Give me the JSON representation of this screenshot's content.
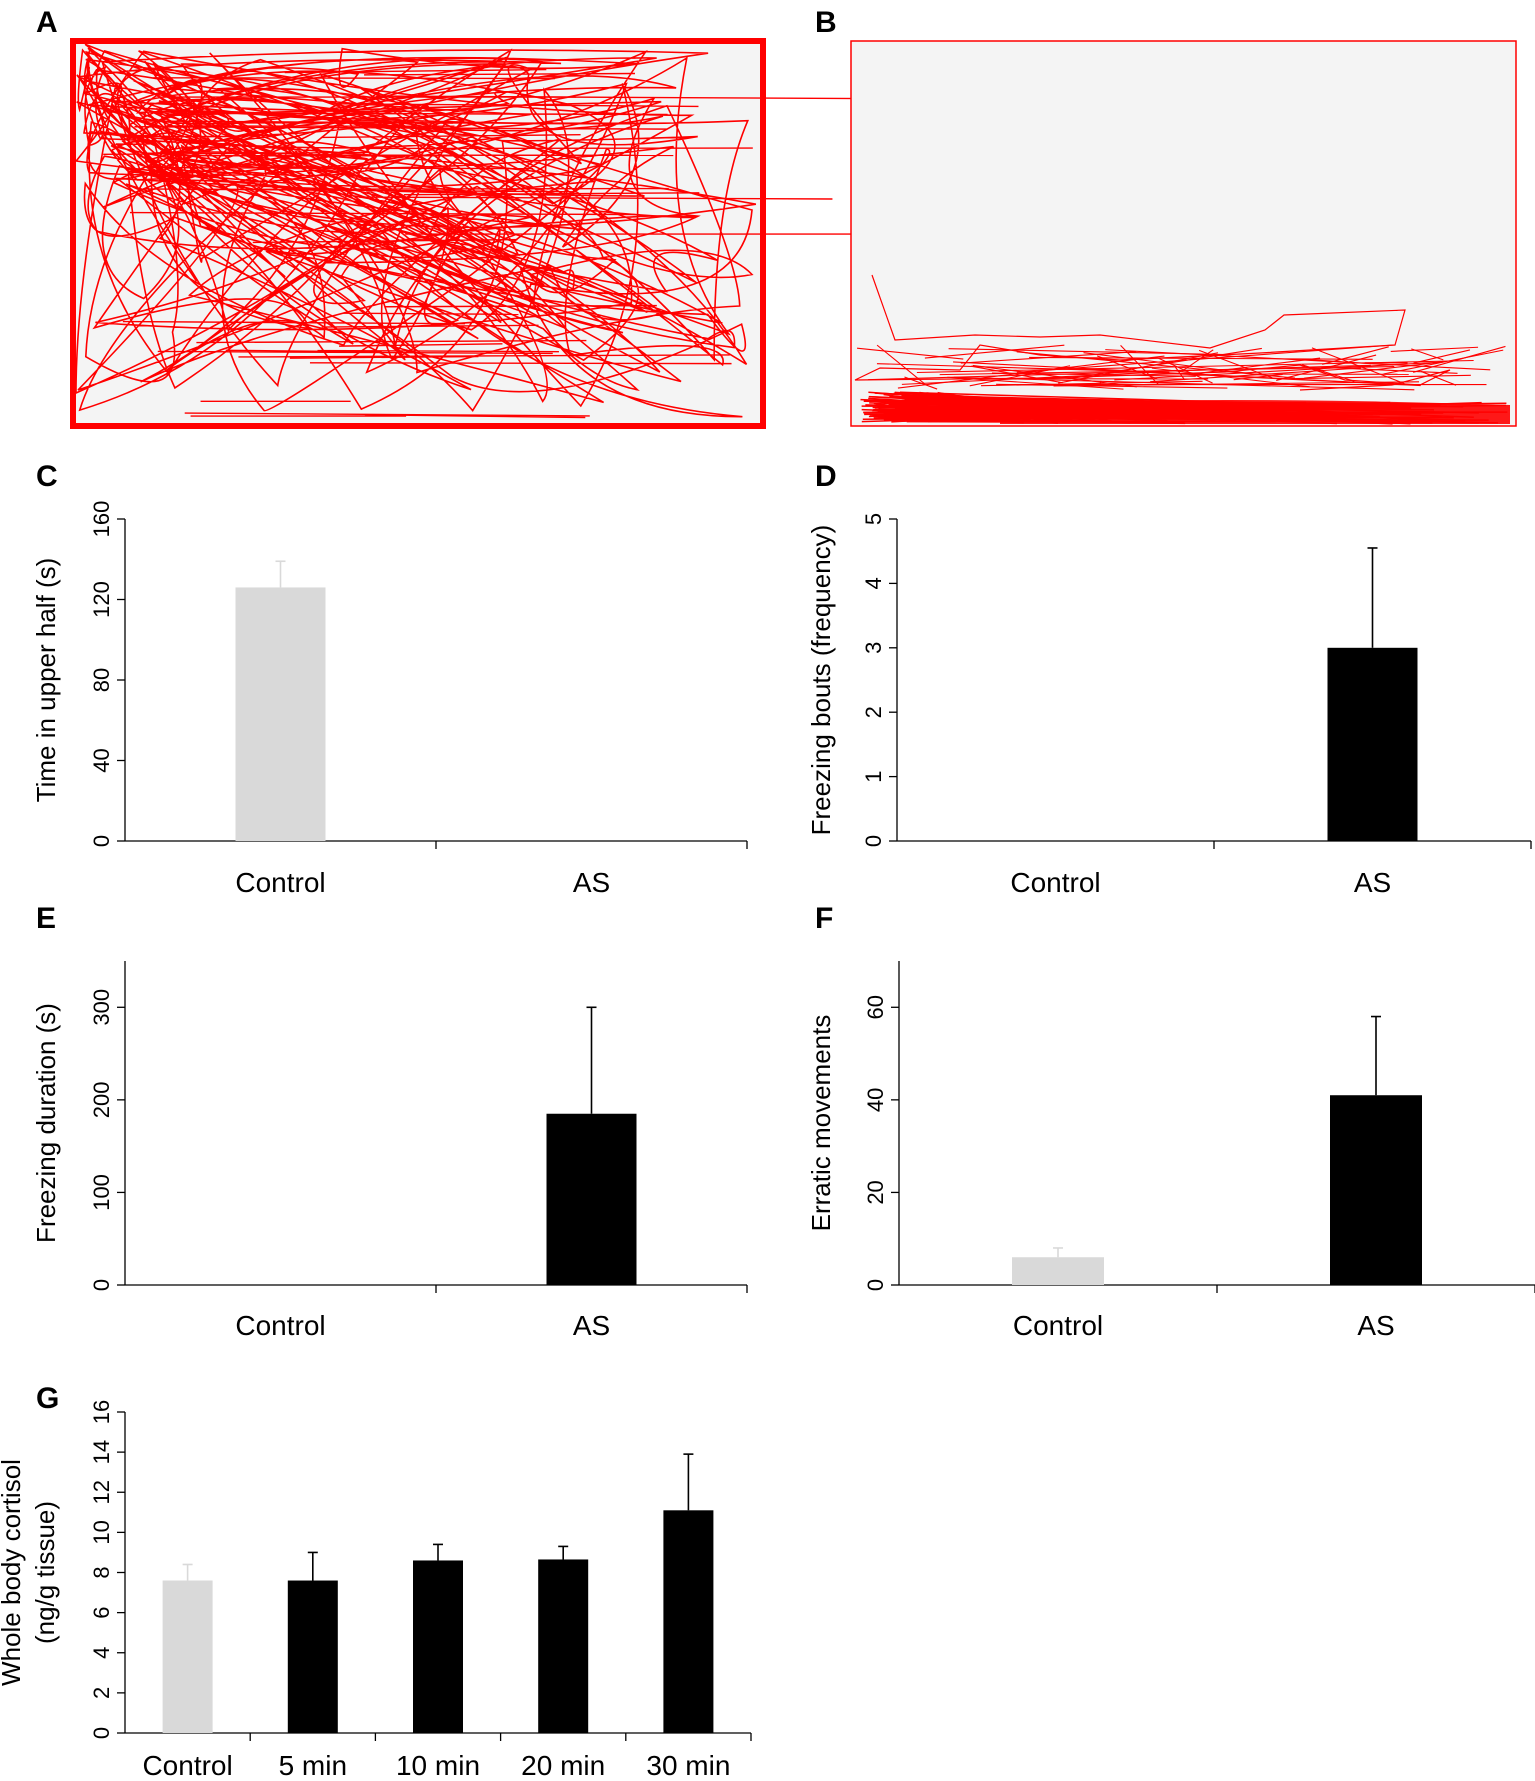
{
  "panels": {
    "A": {
      "letter": "A"
    },
    "B": {
      "letter": "B"
    }
  },
  "colors": {
    "track": "#ff0000",
    "arena_bg": "#f4f4f4",
    "control_bar": "#d9d9d9",
    "treated_bar": "#000000",
    "control_err": "#d9d9d9",
    "treated_err": "#000000"
  },
  "chart_data": [
    {
      "id": "C",
      "letter": "C",
      "type": "bar",
      "categories": [
        "Control",
        "AS"
      ],
      "values": [
        126,
        0
      ],
      "errors": [
        13,
        0
      ],
      "ylim": [
        0,
        160
      ],
      "yticks": [
        0,
        40,
        80,
        120,
        160
      ],
      "ylabel": "Time in upper half (s)",
      "bar_colors": [
        "control",
        "treated"
      ]
    },
    {
      "id": "D",
      "letter": "D",
      "type": "bar",
      "categories": [
        "Control",
        "AS"
      ],
      "values": [
        0,
        3
      ],
      "errors": [
        0,
        1.55
      ],
      "ylim": [
        0,
        5
      ],
      "yticks": [
        0,
        1,
        2,
        3,
        4,
        5
      ],
      "ylabel": "Freezing bouts (frequency)",
      "bar_colors": [
        "control",
        "treated"
      ]
    },
    {
      "id": "E",
      "letter": "E",
      "type": "bar",
      "categories": [
        "Control",
        "AS"
      ],
      "values": [
        0,
        185
      ],
      "errors": [
        0,
        115
      ],
      "ylim": [
        0,
        350
      ],
      "yticks": [
        0,
        100,
        200,
        300
      ],
      "ylabel": "Freezing duration (s)",
      "bar_colors": [
        "control",
        "treated"
      ]
    },
    {
      "id": "F",
      "letter": "F",
      "type": "bar",
      "categories": [
        "Control",
        "AS"
      ],
      "values": [
        6,
        41
      ],
      "errors": [
        2,
        17
      ],
      "ylim": [
        0,
        70
      ],
      "yticks": [
        0,
        20,
        40,
        60
      ],
      "ylabel": "Erratic movements",
      "bar_colors": [
        "control",
        "treated"
      ]
    },
    {
      "id": "G",
      "letter": "G",
      "type": "bar",
      "categories": [
        "Control",
        "5 min",
        "10 min",
        "20 min",
        "30 min"
      ],
      "values": [
        7.6,
        7.6,
        8.6,
        8.65,
        11.1
      ],
      "errors": [
        0.8,
        1.4,
        0.8,
        0.65,
        2.8
      ],
      "ylim": [
        0,
        16
      ],
      "yticks": [
        0,
        2,
        4,
        6,
        8,
        10,
        12,
        14,
        16
      ],
      "ylabel_lines": [
        "Whole body cortisol",
        "(ng/g tissue)"
      ],
      "bar_colors": [
        "control",
        "treated",
        "treated",
        "treated",
        "treated"
      ]
    }
  ]
}
